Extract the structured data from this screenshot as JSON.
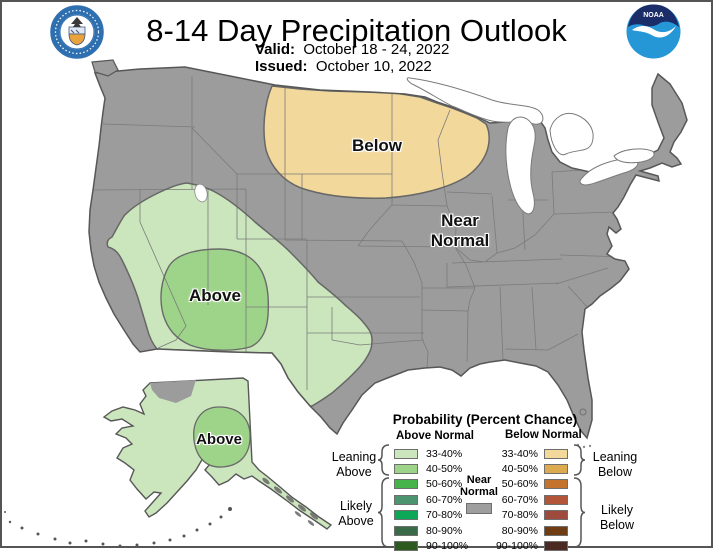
{
  "header": {
    "title": "8-14 Day Precipitation Outlook",
    "valid_label": "Valid:",
    "valid_value": "October 18 - 24, 2022",
    "issued_label": "Issued:",
    "issued_value": "October 10, 2022",
    "noaa_logo_text": "NOAA"
  },
  "map": {
    "labels": {
      "below": "Below",
      "near_normal": "Near\nNormal",
      "above_conus": "Above",
      "above_alaska": "Above"
    },
    "colors": {
      "land": "#9c9c9c",
      "water": "#ffffff",
      "below_33_40": "#f2d89b",
      "above_33_40": "#cbe6bd",
      "above_40_50": "#9ed489"
    }
  },
  "legend": {
    "title": "Probability (Percent Chance)",
    "above_header": "Above Normal",
    "below_header": "Below Normal",
    "near_normal_label": "Near\nNormal",
    "near_normal_color": "#9e9e9e",
    "above_rows": [
      {
        "range": "33-40%",
        "color": "#cbe6bd"
      },
      {
        "range": "40-50%",
        "color": "#9ed489"
      },
      {
        "range": "50-60%",
        "color": "#46b24a"
      },
      {
        "range": "60-70%",
        "color": "#4c9370"
      },
      {
        "range": "70-80%",
        "color": "#0ca858"
      },
      {
        "range": "80-90%",
        "color": "#3a6a48"
      },
      {
        "range": "90-100%",
        "color": "#2c5a1f"
      }
    ],
    "below_rows": [
      {
        "range": "33-40%",
        "color": "#f2d89b"
      },
      {
        "range": "40-50%",
        "color": "#dcab50"
      },
      {
        "range": "50-60%",
        "color": "#c4732c"
      },
      {
        "range": "60-70%",
        "color": "#b25538"
      },
      {
        "range": "70-80%",
        "color": "#9e4a3d"
      },
      {
        "range": "80-90%",
        "color": "#6f3d13"
      },
      {
        "range": "90-100%",
        "color": "#4a2a22"
      }
    ],
    "groups": {
      "leaning_above": "Leaning\nAbove",
      "likely_above": "Likely\nAbove",
      "leaning_below": "Leaning\nBelow",
      "likely_below": "Likely\nBelow"
    }
  }
}
